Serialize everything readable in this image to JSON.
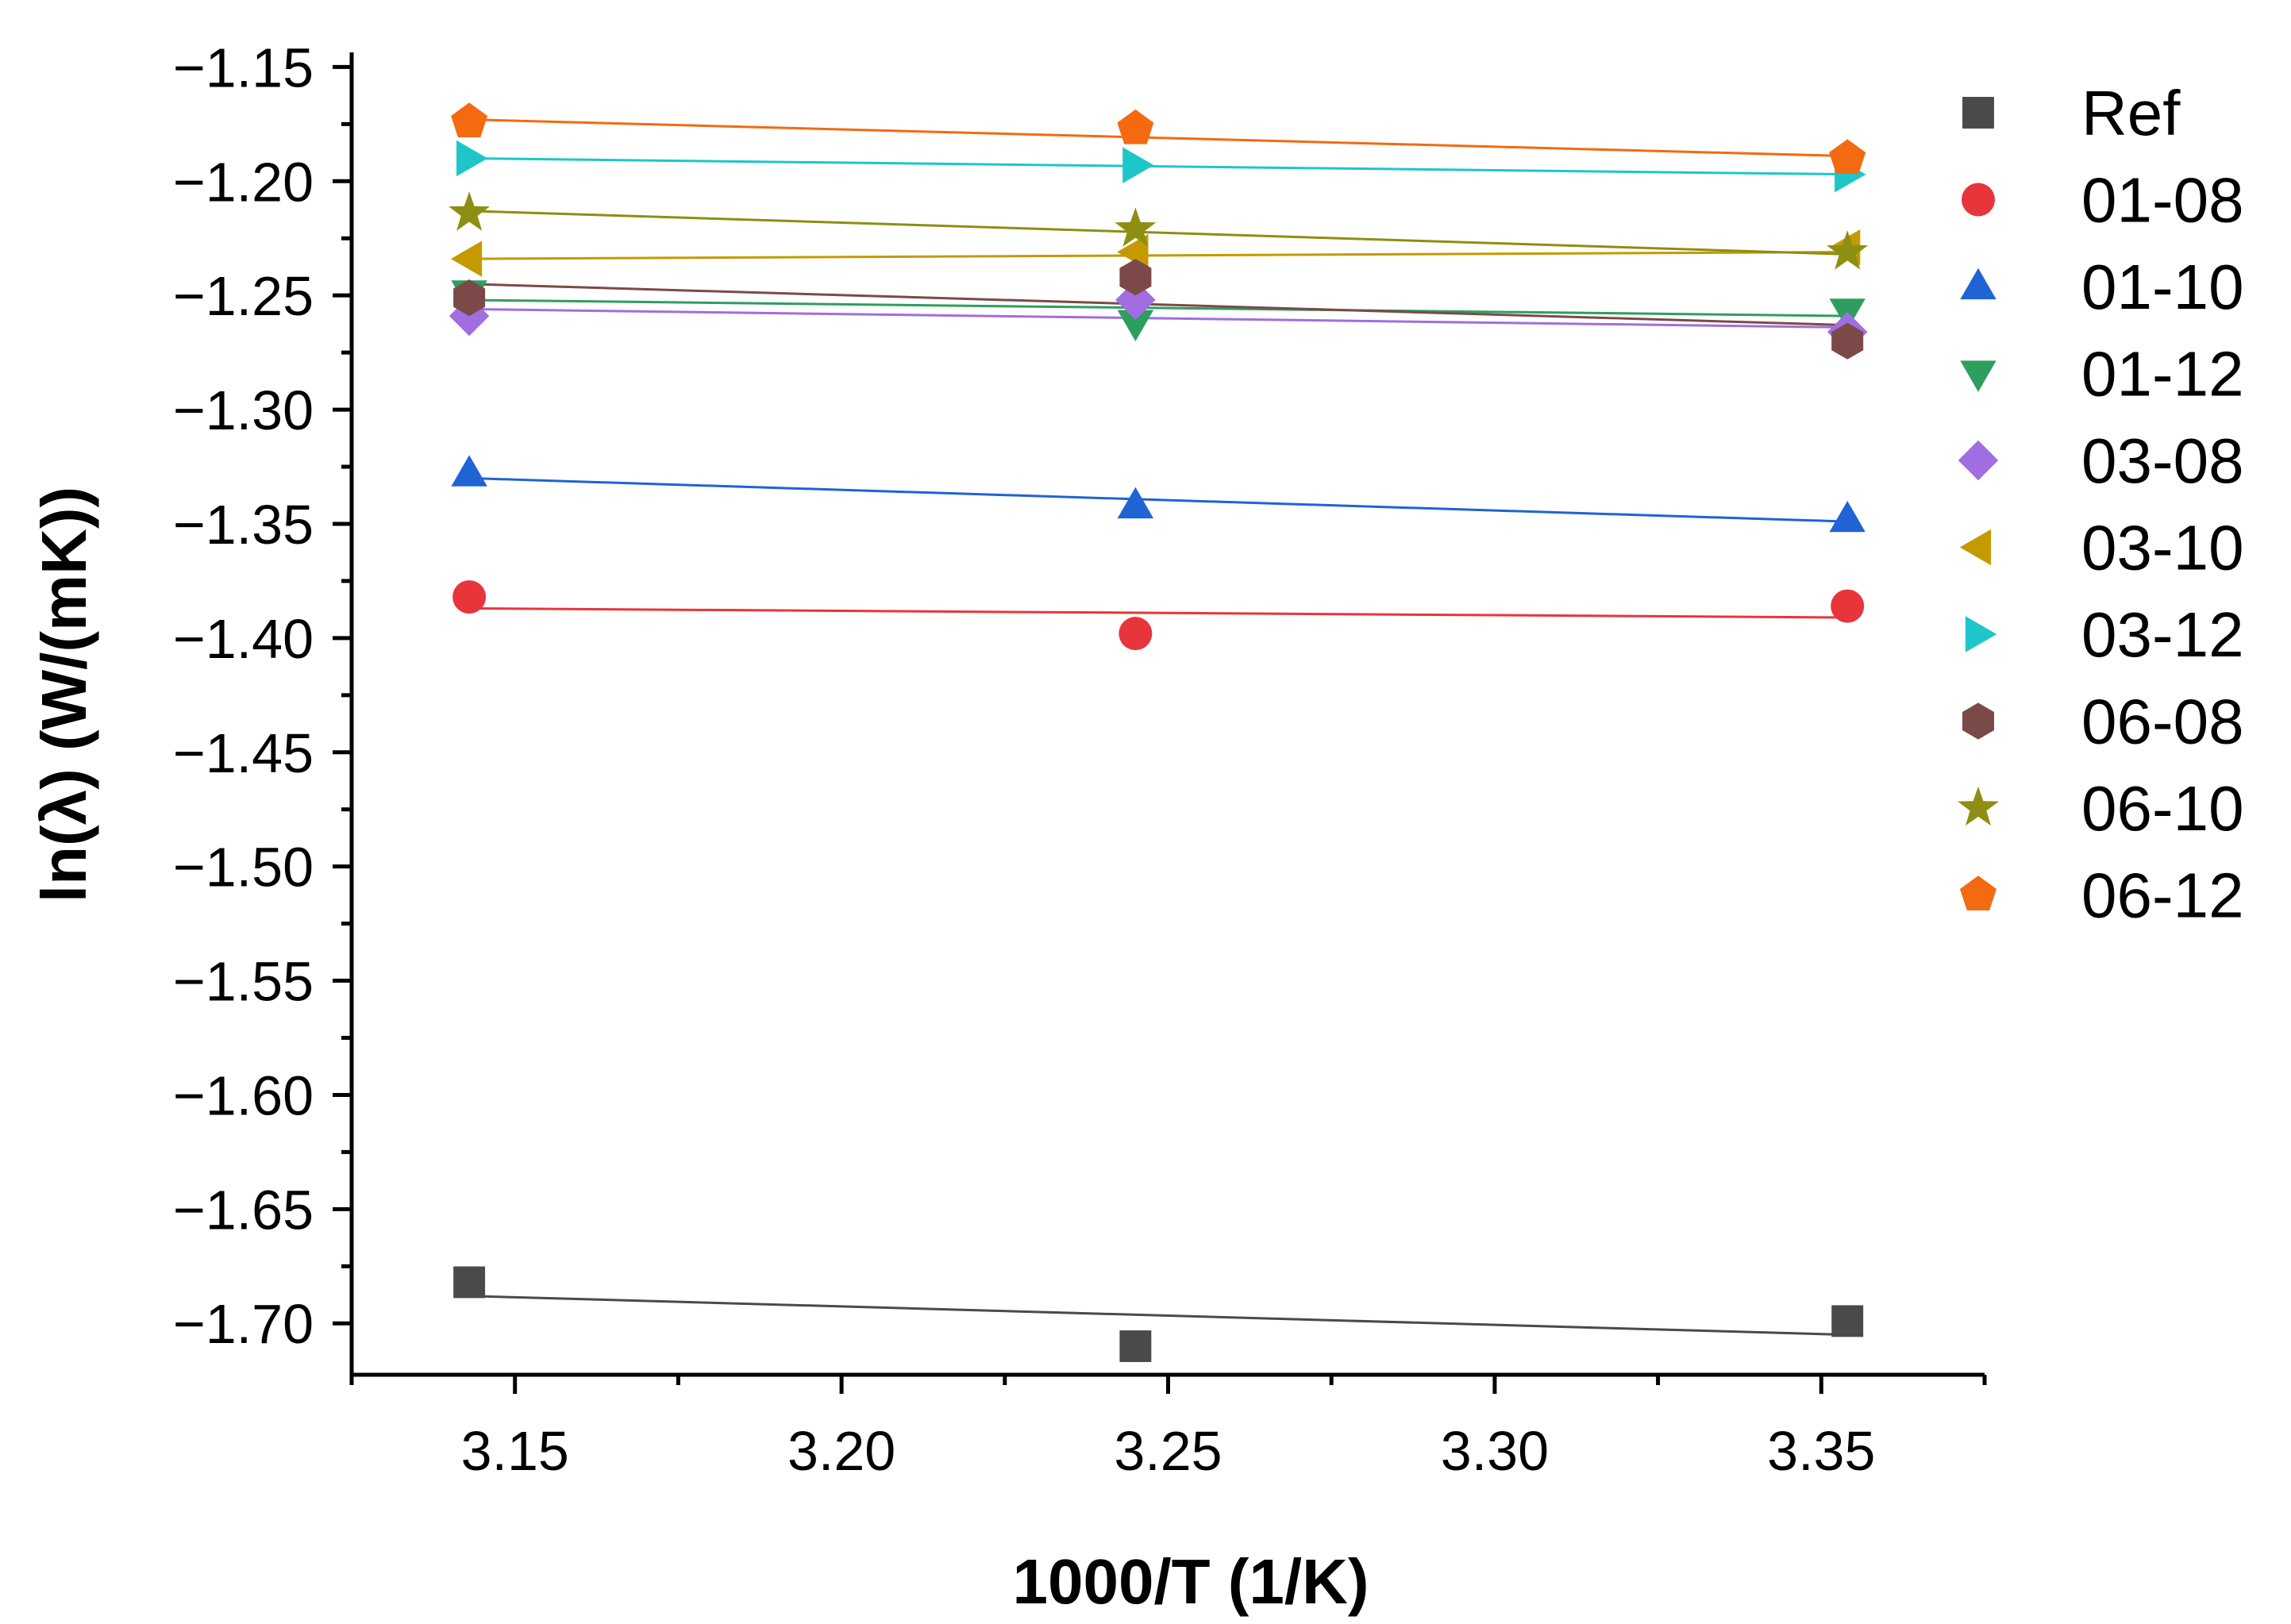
{
  "chart_data": {
    "type": "scatter",
    "title": "",
    "xlabel": "1000/T (1/K)",
    "ylabel": "ln(λ) (W/(mK))",
    "xlim": [
      3.125,
      3.375
    ],
    "ylim": [
      -1.7225,
      -1.145
    ],
    "xticks": [
      "3.15",
      "3.20",
      "3.25",
      "3.30",
      "3.35"
    ],
    "xtick_values": [
      3.15,
      3.2,
      3.25,
      3.3,
      3.35
    ],
    "yticks": [
      "−1.15",
      "−1.20",
      "−1.25",
      "−1.30",
      "−1.35",
      "−1.40",
      "−1.45",
      "−1.50",
      "−1.55",
      "−1.60",
      "−1.65",
      "−1.70"
    ],
    "ytick_values": [
      -1.15,
      -1.2,
      -1.25,
      -1.3,
      -1.35,
      -1.4,
      -1.45,
      -1.5,
      -1.55,
      -1.6,
      -1.65,
      -1.7
    ],
    "legend_position": "right",
    "x": [
      3.143,
      3.245,
      3.354
    ],
    "series": [
      {
        "name": "Ref",
        "marker": "square",
        "color": "#4a4a4a",
        "values": [
          -1.682,
          -1.71,
          -1.699
        ],
        "fit": [
          -1.688,
          -1.705
        ]
      },
      {
        "name": "01-08",
        "marker": "circle",
        "color": "#e8353b",
        "values": [
          -1.382,
          -1.398,
          -1.386
        ],
        "fit": [
          -1.387,
          -1.391
        ]
      },
      {
        "name": "01-10",
        "marker": "triangle-up",
        "color": "#1f63d5",
        "values": [
          -1.328,
          -1.342,
          -1.348
        ],
        "fit": [
          -1.33,
          -1.349
        ]
      },
      {
        "name": "01-12",
        "marker": "triangle-down",
        "color": "#2e9e5e",
        "values": [
          -1.249,
          -1.262,
          -1.257
        ],
        "fit": [
          -1.252,
          -1.259
        ]
      },
      {
        "name": "03-08",
        "marker": "diamond",
        "color": "#a06ee0",
        "values": [
          -1.259,
          -1.252,
          -1.266
        ],
        "fit": [
          -1.256,
          -1.264
        ]
      },
      {
        "name": "03-10",
        "marker": "triangle-left",
        "color": "#c49a00",
        "values": [
          -1.234,
          -1.231,
          -1.229
        ],
        "fit": [
          -1.234,
          -1.231
        ]
      },
      {
        "name": "03-12",
        "marker": "triangle-right",
        "color": "#1ec6c9",
        "values": [
          -1.19,
          -1.193,
          -1.197
        ],
        "fit": [
          -1.19,
          -1.197
        ]
      },
      {
        "name": "06-08",
        "marker": "hexagon",
        "color": "#7b4a48",
        "values": [
          -1.251,
          -1.242,
          -1.27
        ],
        "fit": [
          -1.245,
          -1.263
        ]
      },
      {
        "name": "06-10",
        "marker": "star",
        "color": "#8e8e12",
        "values": [
          -1.214,
          -1.221,
          -1.231
        ],
        "fit": [
          -1.213,
          -1.232
        ]
      },
      {
        "name": "06-12",
        "marker": "pentagon",
        "color": "#f36a10",
        "values": [
          -1.174,
          -1.177,
          -1.19
        ],
        "fit": [
          -1.173,
          -1.189
        ]
      }
    ]
  }
}
